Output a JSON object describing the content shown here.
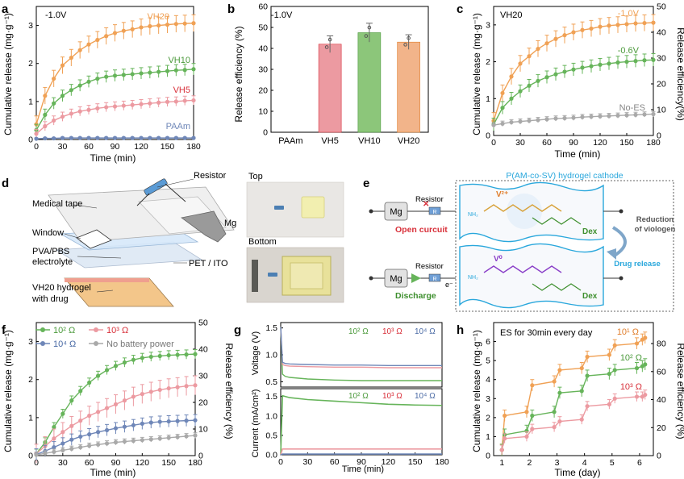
{
  "panels": {
    "a": {
      "letter": "a",
      "annotation": "-1.0V",
      "xlabel": "Time (min)",
      "ylabel": "Cumulative release (mg·g⁻¹)"
    },
    "b": {
      "letter": "b",
      "annotation": "-1.0V",
      "ylabel": "Release efficiency (%)"
    },
    "c": {
      "letter": "c",
      "annotation": "VH20",
      "xlabel": "Time (min)",
      "ylabel": "Cumulative release (mg·g⁻¹)",
      "ylabel2": "Release efficiency(%)"
    },
    "d": {
      "letter": "d",
      "labels": [
        "Resistor",
        "Medical tape",
        "Window",
        "Mg",
        "PVA/PBS",
        "electrolyte",
        "PET / ITO",
        "VH20 hydrogel",
        "with drug"
      ],
      "photo_top": "Top",
      "photo_bottom": "Bottom"
    },
    "e": {
      "letter": "e",
      "title": "P(AM-co-SV) hydrogel cathode",
      "mg": "Mg",
      "resistor": "Resistor",
      "r": "R",
      "open": "Open curcuit",
      "discharge": "Discharge",
      "electron": "e⁻",
      "v2": "V²⁺",
      "v0": "V⁰",
      "dex": "Dex",
      "nh2": "NH₂",
      "reduction": [
        "Reduction",
        "of viologen"
      ],
      "drug_release": "Drug release"
    },
    "f": {
      "letter": "f",
      "xlabel": "Time (min)",
      "ylabel": "Cumulative release (mg·g⁻¹)",
      "ylabel2": "Release efficiency (%)"
    },
    "g": {
      "letter": "g",
      "xlabel": "Time (min)",
      "ylabel_top": "Voltage (V)",
      "ylabel_bottom": "Current (mA/cm²)"
    },
    "h": {
      "letter": "h",
      "annotation": "ES for 30min every day",
      "xlabel": "Time (day)",
      "ylabel": "Cumulative release (mg·g⁻¹)",
      "ylabel2": "Release efficiency (%)"
    }
  },
  "colors": {
    "orange": "#f0a155",
    "green": "#66b45a",
    "pink": "#ec9aa1",
    "blue": "#6f87b8",
    "gray": "#a9a9a9",
    "red": "#d8303a",
    "cyan": "#29a7dc",
    "purple": "#8a3fc8",
    "darkgreen": "#3e8f2e"
  },
  "chart_data": [
    {
      "panel": "a",
      "type": "line",
      "title": "-1.0V",
      "xlabel": "Time (min)",
      "ylabel": "Cumulative release (mg·g⁻¹)",
      "xlim": [
        0,
        180
      ],
      "ylim": [
        0,
        3.5
      ],
      "xticks": [
        0,
        30,
        60,
        90,
        120,
        150,
        180
      ],
      "yticks": [
        0,
        1,
        2,
        3
      ],
      "x": [
        0,
        10,
        20,
        30,
        40,
        50,
        60,
        70,
        80,
        90,
        100,
        110,
        120,
        130,
        140,
        150,
        160,
        170,
        180
      ],
      "series": [
        {
          "name": "VH20",
          "color": "#f0a155",
          "values": [
            0.4,
            1.15,
            1.6,
            1.95,
            2.15,
            2.35,
            2.5,
            2.62,
            2.72,
            2.8,
            2.86,
            2.9,
            2.95,
            2.98,
            3.0,
            3.02,
            3.04,
            3.05,
            3.06
          ],
          "err": 0.22
        },
        {
          "name": "VH10",
          "color": "#66b45a",
          "values": [
            0.25,
            0.65,
            0.95,
            1.15,
            1.3,
            1.42,
            1.52,
            1.6,
            1.65,
            1.68,
            1.7,
            1.72,
            1.74,
            1.76,
            1.78,
            1.8,
            1.82,
            1.83,
            1.85
          ],
          "err": 0.15
        },
        {
          "name": "VH5",
          "color": "#ec9aa1",
          "values": [
            0.15,
            0.35,
            0.5,
            0.6,
            0.68,
            0.74,
            0.78,
            0.82,
            0.85,
            0.87,
            0.89,
            0.91,
            0.93,
            0.95,
            0.97,
            0.99,
            1.0,
            1.02,
            1.03
          ],
          "err": 0.12
        },
        {
          "name": "PAAm",
          "color": "#6f87b8",
          "values": [
            0.02,
            0.03,
            0.03,
            0.04,
            0.04,
            0.04,
            0.04,
            0.04,
            0.04,
            0.04,
            0.04,
            0.04,
            0.04,
            0.04,
            0.04,
            0.04,
            0.04,
            0.04,
            0.04
          ],
          "err": 0.02
        }
      ]
    },
    {
      "panel": "b",
      "type": "bar",
      "title": "-1.0V",
      "ylabel": "Release efficiency (%)",
      "categories": [
        "PAAm",
        "VH5",
        "VH10",
        "VH20"
      ],
      "values": [
        0,
        42,
        47.5,
        43
      ],
      "err": [
        0,
        4,
        4.5,
        3.5
      ],
      "colors": [
        "#cccccc",
        "#ec9aa1",
        "#8cc67a",
        "#f2b48a"
      ],
      "edge_colors": [
        "#999999",
        "#d8303a",
        "#4c9a3c",
        "#e07d2a"
      ],
      "ylim": [
        0,
        60
      ],
      "yticks": [
        0,
        10,
        20,
        30,
        40,
        50,
        60
      ]
    },
    {
      "panel": "c",
      "type": "line",
      "title": "VH20",
      "xlabel": "Time (min)",
      "ylabel": "Cumulative release (mg·g⁻¹)",
      "ylabel2": "Release efficiency(%)",
      "xlim": [
        0,
        180
      ],
      "ylim": [
        0,
        3.5
      ],
      "ylim2": [
        0,
        50
      ],
      "xticks": [
        0,
        30,
        60,
        90,
        120,
        150,
        180
      ],
      "yticks": [
        0,
        1,
        2,
        3
      ],
      "yticks2": [
        0,
        10,
        20,
        30,
        40,
        50
      ],
      "x": [
        0,
        10,
        20,
        30,
        40,
        50,
        60,
        70,
        80,
        90,
        100,
        110,
        120,
        130,
        140,
        150,
        160,
        170,
        180
      ],
      "series": [
        {
          "name": "-1.0V",
          "color": "#f0a155",
          "values": [
            0.4,
            1.15,
            1.6,
            1.95,
            2.15,
            2.35,
            2.5,
            2.62,
            2.72,
            2.8,
            2.86,
            2.9,
            2.95,
            2.98,
            3.0,
            3.02,
            3.04,
            3.05,
            3.06
          ],
          "err": 0.22
        },
        {
          "name": "-0.6V",
          "color": "#66b45a",
          "values": [
            0.3,
            0.75,
            1.0,
            1.2,
            1.35,
            1.48,
            1.58,
            1.66,
            1.73,
            1.79,
            1.84,
            1.88,
            1.92,
            1.95,
            1.98,
            2.0,
            2.02,
            2.04,
            2.05
          ],
          "err": 0.17
        },
        {
          "name": "No-ES",
          "color": "#a9a9a9",
          "values": [
            0.28,
            0.32,
            0.36,
            0.38,
            0.4,
            0.42,
            0.44,
            0.46,
            0.47,
            0.48,
            0.5,
            0.51,
            0.52,
            0.53,
            0.54,
            0.55,
            0.56,
            0.57,
            0.58
          ],
          "err": 0.07
        }
      ]
    },
    {
      "panel": "f",
      "type": "line",
      "xlabel": "Time (min)",
      "ylabel": "Cumulative release (mg·g⁻¹)",
      "ylabel2": "Release efficiency (%)",
      "xlim": [
        0,
        180
      ],
      "ylim": [
        0,
        3.5
      ],
      "ylim2": [
        0,
        50
      ],
      "xticks": [
        0,
        30,
        60,
        90,
        120,
        150,
        180
      ],
      "yticks": [
        0,
        1,
        2,
        3
      ],
      "yticks2": [
        0,
        10,
        20,
        30,
        40,
        50
      ],
      "x": [
        0,
        10,
        20,
        30,
        40,
        50,
        60,
        70,
        80,
        90,
        100,
        110,
        120,
        130,
        140,
        150,
        160,
        170,
        180
      ],
      "series": [
        {
          "name": "10² Ω",
          "color": "#66b45a",
          "values": [
            0.05,
            0.35,
            0.75,
            1.1,
            1.45,
            1.7,
            1.92,
            2.1,
            2.25,
            2.36,
            2.45,
            2.52,
            2.57,
            2.6,
            2.62,
            2.64,
            2.65,
            2.66,
            2.67
          ],
          "err": 0.12
        },
        {
          "name": "10³ Ω",
          "color": "#ec9aa1",
          "values": [
            0.05,
            0.25,
            0.45,
            0.62,
            0.78,
            0.92,
            1.05,
            1.15,
            1.25,
            1.35,
            1.45,
            1.55,
            1.62,
            1.68,
            1.73,
            1.77,
            1.8,
            1.83,
            1.85
          ],
          "err": 0.25
        },
        {
          "name": "10⁴ Ω",
          "color": "#6f87b8",
          "values": [
            0.03,
            0.12,
            0.22,
            0.32,
            0.42,
            0.5,
            0.56,
            0.62,
            0.67,
            0.72,
            0.76,
            0.8,
            0.84,
            0.87,
            0.89,
            0.9,
            0.91,
            0.92,
            0.93
          ],
          "err": 0.15
        },
        {
          "name": "No battery power",
          "color": "#a9a9a9",
          "values": [
            0.02,
            0.06,
            0.1,
            0.14,
            0.18,
            0.22,
            0.26,
            0.29,
            0.32,
            0.35,
            0.37,
            0.39,
            0.41,
            0.43,
            0.45,
            0.47,
            0.49,
            0.51,
            0.53
          ],
          "err": 0.07
        }
      ]
    },
    {
      "panel": "g-voltage",
      "type": "line",
      "ylabel": "Voltage (V)",
      "xlim": [
        0,
        180
      ],
      "ylim": [
        0.4,
        1.6
      ],
      "yticks": [
        0.5,
        1.0,
        1.5
      ],
      "x": [
        0,
        2,
        5,
        10,
        30,
        60,
        90,
        120,
        150,
        180
      ],
      "series": [
        {
          "name": "10² Ω",
          "color": "#66b45a",
          "values": [
            1.52,
            0.64,
            0.6,
            0.58,
            0.55,
            0.53,
            0.52,
            0.52,
            0.52,
            0.52
          ]
        },
        {
          "name": "10³ Ω",
          "color": "#ec9aa1",
          "values": [
            1.52,
            0.82,
            0.8,
            0.79,
            0.78,
            0.77,
            0.77,
            0.76,
            0.76,
            0.76
          ]
        },
        {
          "name": "10⁴ Ω",
          "color": "#6f87b8",
          "values": [
            1.52,
            0.86,
            0.84,
            0.83,
            0.82,
            0.81,
            0.81,
            0.8,
            0.8,
            0.8
          ]
        }
      ]
    },
    {
      "panel": "g-current",
      "type": "line",
      "xlabel": "Time (min)",
      "ylabel": "Current (mA/cm²)",
      "xlim": [
        0,
        180
      ],
      "ylim": [
        0,
        1.7
      ],
      "xticks": [
        0,
        30,
        60,
        90,
        120,
        150,
        180
      ],
      "yticks": [
        0.0,
        0.5,
        1.0,
        1.5
      ],
      "x": [
        0,
        2,
        5,
        10,
        30,
        60,
        90,
        120,
        150,
        180
      ],
      "series": [
        {
          "name": "10² Ω",
          "color": "#66b45a",
          "values": [
            0.0,
            1.52,
            1.5,
            1.47,
            1.42,
            1.38,
            1.34,
            1.3,
            1.28,
            1.27
          ]
        },
        {
          "name": "10³ Ω",
          "color": "#ec9aa1",
          "values": [
            0.0,
            0.15,
            0.15,
            0.15,
            0.15,
            0.15,
            0.15,
            0.15,
            0.15,
            0.15
          ]
        },
        {
          "name": "10⁴ Ω",
          "color": "#6f87b8",
          "values": [
            0.0,
            0.02,
            0.02,
            0.02,
            0.02,
            0.02,
            0.02,
            0.02,
            0.02,
            0.02
          ]
        }
      ]
    },
    {
      "panel": "h",
      "type": "line",
      "title": "ES for 30min every day",
      "xlabel": "Time (day)",
      "ylabel": "Cumulative release (mg·g⁻¹)",
      "ylabel2": "Release efficiency (%)",
      "xlim": [
        0.7,
        6.5
      ],
      "ylim": [
        0,
        7
      ],
      "ylim2": [
        0,
        95
      ],
      "xticks": [
        1,
        2,
        3,
        4,
        5,
        6
      ],
      "yticks": [
        0,
        1,
        2,
        3,
        4,
        5,
        6
      ],
      "yticks2": [
        0,
        20,
        40,
        60,
        80
      ],
      "x": [
        1,
        1.1,
        1.9,
        2.1,
        2.9,
        3.1,
        3.9,
        4.1,
        4.9,
        5.1,
        5.9,
        6.1,
        6.2
      ],
      "series": [
        {
          "name": "10¹ Ω",
          "color": "#f0a155",
          "values": [
            0.3,
            2.1,
            2.3,
            3.7,
            3.9,
            4.5,
            4.6,
            5.2,
            5.3,
            5.8,
            5.9,
            6.1,
            6.2
          ],
          "err": 0.3
        },
        {
          "name": "10² Ω",
          "color": "#66b45a",
          "values": [
            0.3,
            1.1,
            1.3,
            2.1,
            2.3,
            3.3,
            3.4,
            4.2,
            4.3,
            4.5,
            4.6,
            4.7,
            4.8
          ],
          "err": 0.3
        },
        {
          "name": "10³ Ω",
          "color": "#ec9aa1",
          "values": [
            0.3,
            0.9,
            1.0,
            1.4,
            1.5,
            1.8,
            1.9,
            2.6,
            2.7,
            3.0,
            3.1,
            3.1,
            3.2
          ],
          "err": 0.25
        }
      ]
    }
  ]
}
